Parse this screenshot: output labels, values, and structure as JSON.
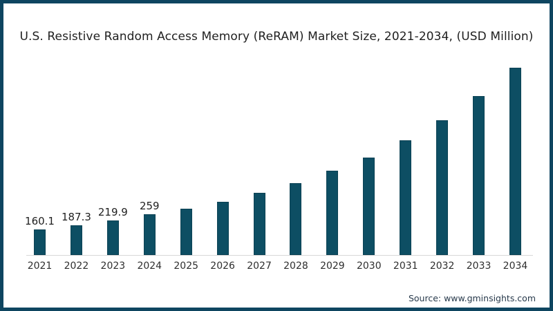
{
  "source": "Source: www.gminsights.com",
  "colors": {
    "bar": "#0d4e63",
    "bar_edge": "#0c4254",
    "frame": "#0e4560",
    "axis_line": "#d8d8d8",
    "title_text": "#1f1f1f",
    "source_text": "#27394b"
  },
  "chart_data": {
    "type": "bar",
    "title": "U.S. Resistive Random Access Memory (ReRAM) Market Size, 2021-2034, (USD Million)",
    "categories": [
      "2021",
      "2022",
      "2023",
      "2024",
      "2025",
      "2026",
      "2027",
      "2028",
      "2029",
      "2030",
      "2031",
      "2032",
      "2033",
      "2034"
    ],
    "values": [
      160.1,
      187.3,
      219.9,
      259,
      292,
      336,
      392,
      455,
      532,
      616,
      726,
      852,
      1006,
      1185
    ],
    "displayed_value_labels": [
      "160.1",
      "187.3",
      "219.9",
      "259",
      "",
      "",
      "",
      "",
      "",
      "",
      "",
      "",
      "",
      ""
    ],
    "xlabel": "",
    "ylabel": "",
    "ylim": [
      0,
      1240
    ],
    "grid": false,
    "legend": false,
    "y_axis_shown": false,
    "bar_color": "#0d4e63"
  }
}
